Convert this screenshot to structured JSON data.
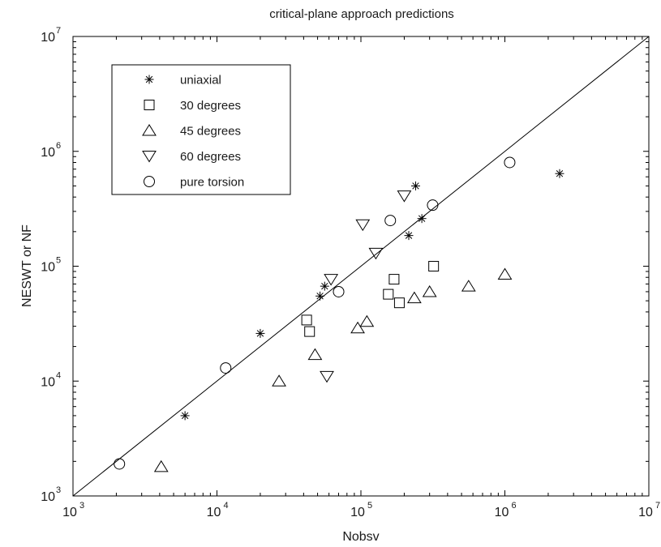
{
  "chart_data": {
    "type": "scatter",
    "title": "critical-plane approach predictions",
    "xlabel": "Nobsv",
    "ylabel": "NESWT or NF",
    "xscale": "log",
    "yscale": "log",
    "xlim": [
      1000,
      10000000
    ],
    "ylim": [
      1000,
      10000000
    ],
    "x_ticks": [
      "10",
      "10",
      "10",
      "10",
      "10"
    ],
    "x_tick_exponents": [
      "3",
      "4",
      "5",
      "6",
      "7"
    ],
    "y_ticks": [
      "10",
      "10",
      "10",
      "10",
      "10"
    ],
    "y_tick_exponents": [
      "3",
      "4",
      "5",
      "6",
      "7"
    ],
    "grid": false,
    "legend_position": "top-left",
    "reference_line": {
      "from": [
        1000,
        1000
      ],
      "to": [
        10000000,
        10000000
      ]
    },
    "series": [
      {
        "name": "uniaxial",
        "marker": "asterisk",
        "points": [
          [
            6000,
            5000
          ],
          [
            20000,
            26000
          ],
          [
            52000,
            55000
          ],
          [
            56000,
            67000
          ],
          [
            215000,
            185000
          ],
          [
            240000,
            500000
          ],
          [
            265000,
            260000
          ],
          [
            2400000,
            640000
          ]
        ]
      },
      {
        "name": "30 degrees",
        "marker": "square",
        "points": [
          [
            42000,
            34000
          ],
          [
            44000,
            27000
          ],
          [
            155000,
            57000
          ],
          [
            170000,
            77000
          ],
          [
            185000,
            48000
          ],
          [
            320000,
            100000
          ]
        ]
      },
      {
        "name": "45 degrees",
        "marker": "triangle-up",
        "points": [
          [
            4100,
            1800
          ],
          [
            27000,
            10000
          ],
          [
            48000,
            17000
          ],
          [
            95000,
            29000
          ],
          [
            110000,
            33000
          ],
          [
            235000,
            53000
          ],
          [
            300000,
            60000
          ],
          [
            560000,
            67000
          ],
          [
            1000000,
            85000
          ]
        ]
      },
      {
        "name": "60 degrees",
        "marker": "triangle-down",
        "points": [
          [
            58000,
            11000
          ],
          [
            62000,
            77000
          ],
          [
            103000,
            230000
          ],
          [
            127000,
            130000
          ],
          [
            200000,
            410000
          ]
        ]
      },
      {
        "name": "pure torsion",
        "marker": "circle",
        "points": [
          [
            2100,
            1900
          ],
          [
            11500,
            13000
          ],
          [
            70000,
            60000
          ],
          [
            160000,
            250000
          ],
          [
            315000,
            340000
          ],
          [
            1080000,
            800000
          ]
        ]
      }
    ]
  }
}
